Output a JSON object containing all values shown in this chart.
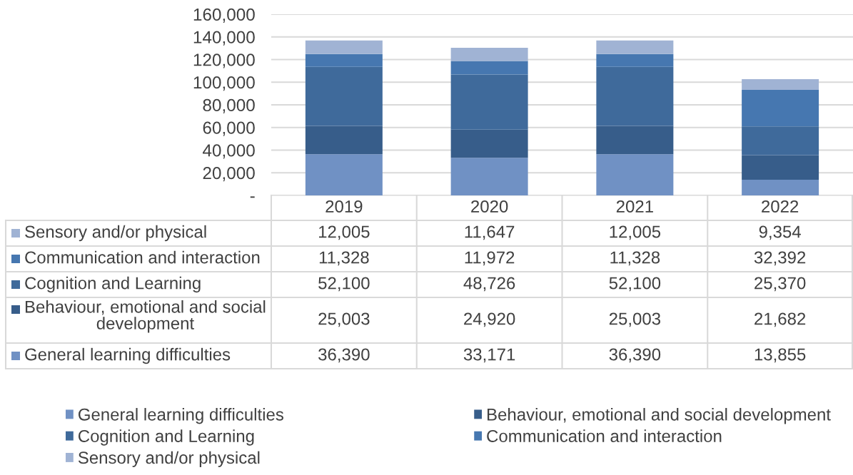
{
  "chart_data": {
    "type": "bar",
    "stacked": true,
    "categories": [
      "2019",
      "2020",
      "2021",
      "2022"
    ],
    "series": [
      {
        "name": "General learning difficulties",
        "color": "#7091c4",
        "values": [
          36390,
          33171,
          36390,
          13855
        ],
        "value_labels": [
          "36,390",
          "33,171",
          "36,390",
          "13,855"
        ]
      },
      {
        "name": "Behaviour, emotional and social development",
        "color": "#375d8a",
        "values": [
          25003,
          24920,
          25003,
          21682
        ],
        "value_labels": [
          "25,003",
          "24,920",
          "25,003",
          "21,682"
        ]
      },
      {
        "name": "Cognition and Learning",
        "color": "#3f6a9b",
        "values": [
          52100,
          48726,
          52100,
          25370
        ],
        "value_labels": [
          "52,100",
          "48,726",
          "52,100",
          "25,370"
        ]
      },
      {
        "name": "Communication and interaction",
        "color": "#4677b0",
        "values": [
          11328,
          11972,
          11328,
          32392
        ],
        "value_labels": [
          "11,328",
          "11,972",
          "11,328",
          "32,392"
        ]
      },
      {
        "name": "Sensory and/or physical",
        "color": "#a0b3d4",
        "values": [
          12005,
          11647,
          12005,
          9354
        ],
        "value_labels": [
          "12,005",
          "11,647",
          "12,005",
          "9,354"
        ]
      }
    ],
    "ylim": [
      0,
      160000
    ],
    "yticks": [
      {
        "value": 0,
        "label": "-"
      },
      {
        "value": 20000,
        "label": "20,000"
      },
      {
        "value": 40000,
        "label": "40,000"
      },
      {
        "value": 60000,
        "label": "60,000"
      },
      {
        "value": 80000,
        "label": "80,000"
      },
      {
        "value": 100000,
        "label": "100,000"
      },
      {
        "value": 120000,
        "label": "120,000"
      },
      {
        "value": 140000,
        "label": "140,000"
      },
      {
        "value": 160000,
        "label": "160,000"
      }
    ],
    "grid": "y",
    "legend": "bottom"
  }
}
